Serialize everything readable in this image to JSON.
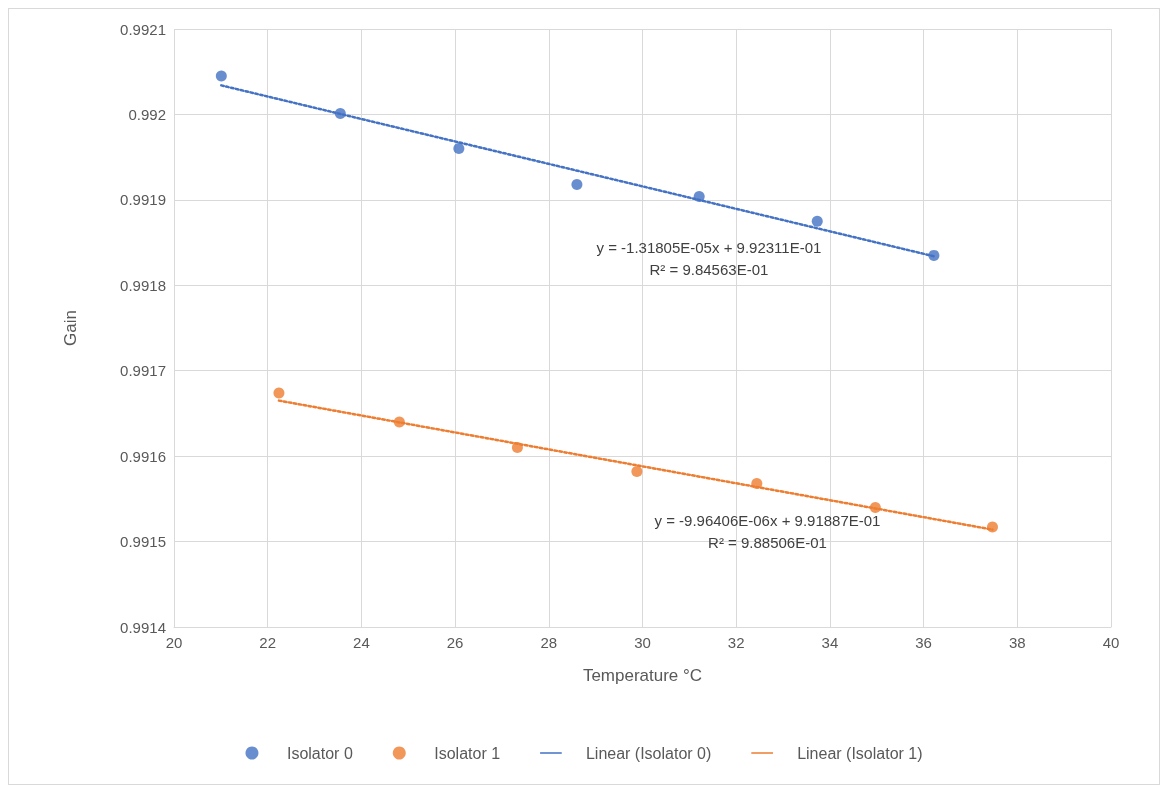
{
  "chart_data": {
    "type": "scatter",
    "xlabel": "Temperature °C",
    "ylabel": "Gain",
    "xlim": [
      20,
      40
    ],
    "xticks": [
      20,
      22,
      24,
      26,
      28,
      30,
      32,
      34,
      36,
      38,
      40
    ],
    "ylim": [
      0.9914,
      0.9921
    ],
    "yticks": [
      0.9914,
      0.9915,
      0.9916,
      0.9917,
      0.9918,
      0.9919,
      0.992,
      0.9921
    ],
    "grid": true,
    "legend": "bottom",
    "marker": "circle",
    "series": [
      {
        "name": "Isolator 0",
        "color": "#4472c4",
        "x": [
          21.01,
          23.55,
          26.08,
          28.6,
          31.21,
          33.73,
          36.22
        ],
        "values": [
          0.992045,
          0.992001,
          0.99196,
          0.991918,
          0.991904,
          0.991875,
          0.991835
        ]
      },
      {
        "name": "Isolator 1",
        "color": "#ed7d31",
        "x": [
          22.24,
          24.81,
          27.33,
          29.88,
          32.44,
          34.97,
          37.47
        ],
        "values": [
          0.991674,
          0.99164,
          0.99161,
          0.991582,
          0.991568,
          0.99154,
          0.991517
        ]
      },
      {
        "name": "Linear (Isolator 0)",
        "color": "#4472c4",
        "type": "line",
        "line_style": "dotted",
        "marker": "none",
        "x": [
          21.01,
          36.22
        ],
        "values": [
          0.992034,
          0.991834
        ]
      },
      {
        "name": "Linear (Isolator 1)",
        "color": "#ed7d31",
        "type": "line",
        "line_style": "dotted",
        "marker": "none",
        "x": [
          22.24,
          37.47
        ],
        "values": [
          0.991665,
          0.991514
        ]
      }
    ],
    "annotations": [
      "y = -1.31805E-05x + 9.92311E-01\nR² = 9.84563E-01",
      "y = -9.96406E-06x + 9.91887E-01\nR² = 9.88506E-01"
    ]
  }
}
